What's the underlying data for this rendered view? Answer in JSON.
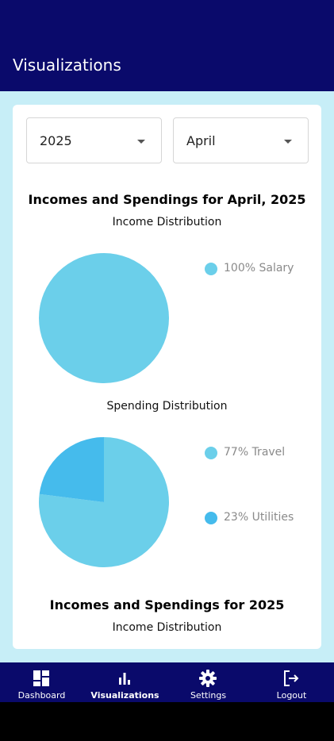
{
  "app": {
    "title": "Visualizations"
  },
  "filters": {
    "year": "2025",
    "month": "April"
  },
  "monthly": {
    "heading": "Incomes and Spendings for April, 2025",
    "income_title": "Income Distribution",
    "spending_title": "Spending Distribution"
  },
  "yearly": {
    "heading": "Incomes and Spendings for 2025",
    "income_title": "Income Distribution"
  },
  "colors": {
    "app_bar": "#0a0a6b",
    "background": "#c7eef7",
    "pie_light": "#6bcfea",
    "pie_dark": "#45bbec"
  },
  "nav": {
    "items": [
      {
        "label": "Dashboard",
        "icon": "dashboard-icon"
      },
      {
        "label": "Visualizations",
        "icon": "bar-chart-icon"
      },
      {
        "label": "Settings",
        "icon": "gear-icon"
      },
      {
        "label": "Logout",
        "icon": "logout-icon"
      }
    ]
  },
  "chart_data": [
    {
      "type": "pie",
      "title": "Income Distribution",
      "categories": [
        "Salary"
      ],
      "values": [
        100
      ],
      "legend": [
        "100% Salary"
      ],
      "colors": [
        "#6bcfea"
      ]
    },
    {
      "type": "pie",
      "title": "Spending Distribution",
      "categories": [
        "Travel",
        "Utilities"
      ],
      "values": [
        77,
        23
      ],
      "legend": [
        "77% Travel",
        "23% Utilities"
      ],
      "colors": [
        "#6bcfea",
        "#45bbec"
      ]
    }
  ]
}
